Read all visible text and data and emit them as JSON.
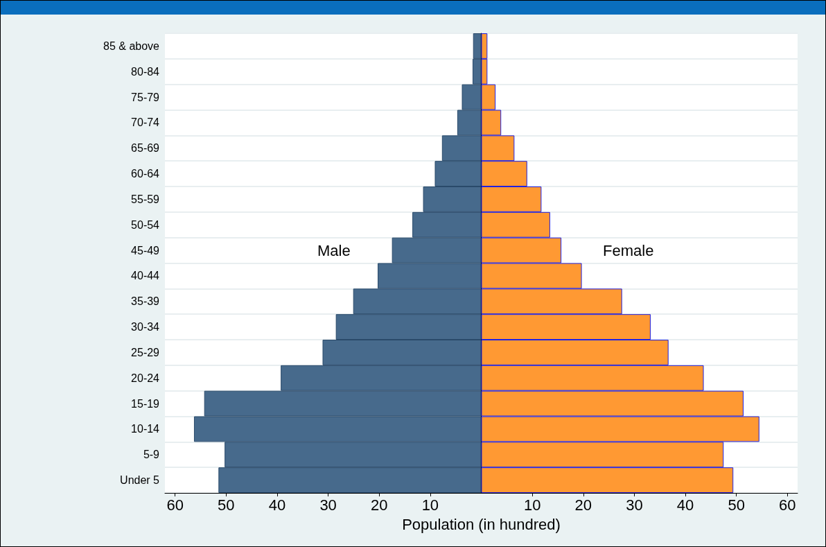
{
  "chart_data": {
    "type": "bar",
    "orientation": "horizontal",
    "stacked": true,
    "xlabel": "Population (in hundred)",
    "categories": [
      "85 & above",
      "80-84",
      "75-79",
      "70-74",
      "65-69",
      "60-64",
      "55-59",
      "50-54",
      "45-49",
      "40-44",
      "35-39",
      "30-34",
      "25-29",
      "20-24",
      "15-19",
      "10-14",
      "5-9",
      "Under 5"
    ],
    "series": [
      {
        "name": "Male",
        "color": "#476a8c",
        "values": [
          -1.6,
          -1.7,
          -3.8,
          -4.7,
          -7.7,
          -9.1,
          -11.4,
          -13.5,
          -17.5,
          -20.3,
          -25.1,
          -28.5,
          -31.1,
          -39.3,
          -54.3,
          -56.3,
          -50.3,
          -51.5
        ]
      },
      {
        "name": "Female",
        "color": "#ff9933",
        "values": [
          1.2,
          1.2,
          2.8,
          3.9,
          6.5,
          9.0,
          11.8,
          13.5,
          15.7,
          19.7,
          27.6,
          33.2,
          36.7,
          43.6,
          51.4,
          54.5,
          47.5,
          49.4
        ]
      }
    ],
    "xlim": [
      -62,
      62
    ],
    "xticks": [
      {
        "value": -60,
        "label": "60"
      },
      {
        "value": -50,
        "label": "50"
      },
      {
        "value": -40,
        "label": "40"
      },
      {
        "value": -30,
        "label": "30"
      },
      {
        "value": -20,
        "label": "20"
      },
      {
        "value": -10,
        "label": "10"
      },
      10,
      20,
      30,
      40,
      50,
      60
    ],
    "grid": "y",
    "legend": false
  }
}
